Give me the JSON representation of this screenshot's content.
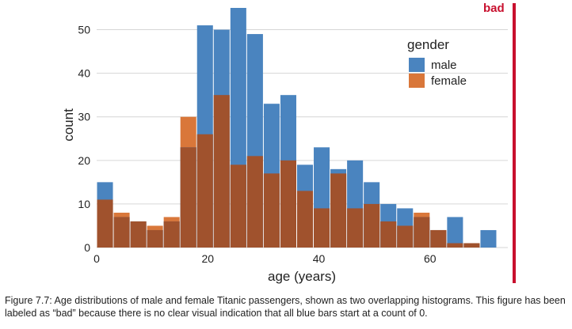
{
  "chart_data": {
    "type": "bar",
    "mode": "overlapping-histogram",
    "bin_width": 3,
    "bin_starts": [
      0,
      3,
      6,
      9,
      12,
      15,
      18,
      21,
      24,
      27,
      30,
      33,
      36,
      39,
      42,
      45,
      48,
      51,
      54,
      57,
      60,
      63,
      66,
      69
    ],
    "series": [
      {
        "name": "male",
        "color": "#4a84bf",
        "values": [
          15,
          7,
          6,
          4,
          6,
          23,
          51,
          50,
          55,
          49,
          33,
          35,
          19,
          23,
          18,
          20,
          15,
          10,
          9,
          7,
          4,
          7,
          1,
          4
        ]
      },
      {
        "name": "female",
        "color": "#d9773a",
        "values": [
          11,
          8,
          6,
          5,
          7,
          30,
          26,
          35,
          19,
          21,
          17,
          20,
          13,
          9,
          17,
          9,
          10,
          6,
          5,
          8,
          4,
          1,
          1,
          0
        ]
      }
    ],
    "overlap_color": "#a0522d",
    "xlabel": "age (years)",
    "ylabel": "count",
    "xlim": [
      0,
      74
    ],
    "ylim": [
      0,
      55
    ],
    "xticks": [
      0,
      20,
      40,
      60
    ],
    "yticks": [
      0,
      10,
      20,
      30,
      40,
      50
    ],
    "grid": "horizontal",
    "legend": {
      "title": "gender",
      "position": "top-right",
      "entries": [
        "male",
        "female"
      ]
    }
  },
  "badge": {
    "text": "bad",
    "color": "#c8102e"
  },
  "caption": "Figure 7.7: Age distributions of male and female Titanic passengers, shown as two overlapping histograms. This figure has been labeled as “bad” because there is no clear visual indication that all blue bars start at a count of 0."
}
